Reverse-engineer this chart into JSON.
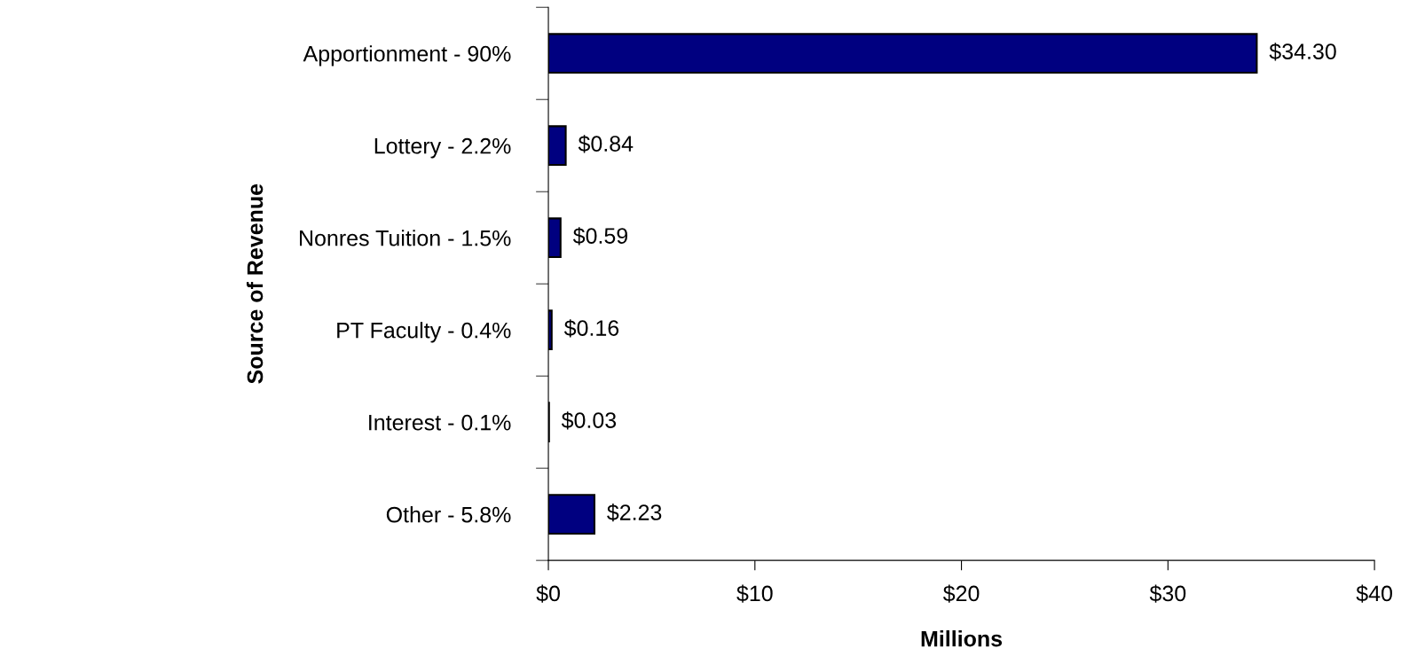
{
  "chart_data": {
    "type": "bar",
    "orientation": "horizontal",
    "categories": [
      "Apportionment - 90%",
      "Lottery - 2.2%",
      "Nonres Tuition - 1.5%",
      "PT Faculty - 0.4%",
      "Interest - 0.1%",
      "Other - 5.8%"
    ],
    "values": [
      34.3,
      0.84,
      0.59,
      0.16,
      0.03,
      2.23
    ],
    "value_labels": [
      "$34.30",
      "$0.84",
      "$0.59",
      "$0.16",
      "$0.03",
      "$2.23"
    ],
    "color": "#000080",
    "xlabel": "Millions",
    "ylabel": "Source of Revenue",
    "xlim": [
      0,
      40
    ],
    "xticks": [
      {
        "value": 0,
        "label": "$0"
      },
      {
        "value": 10,
        "label": "$10"
      },
      {
        "value": 20,
        "label": "$20"
      },
      {
        "value": 30,
        "label": "$30"
      },
      {
        "value": 40,
        "label": "$40"
      }
    ],
    "grid": false,
    "legend": false
  }
}
